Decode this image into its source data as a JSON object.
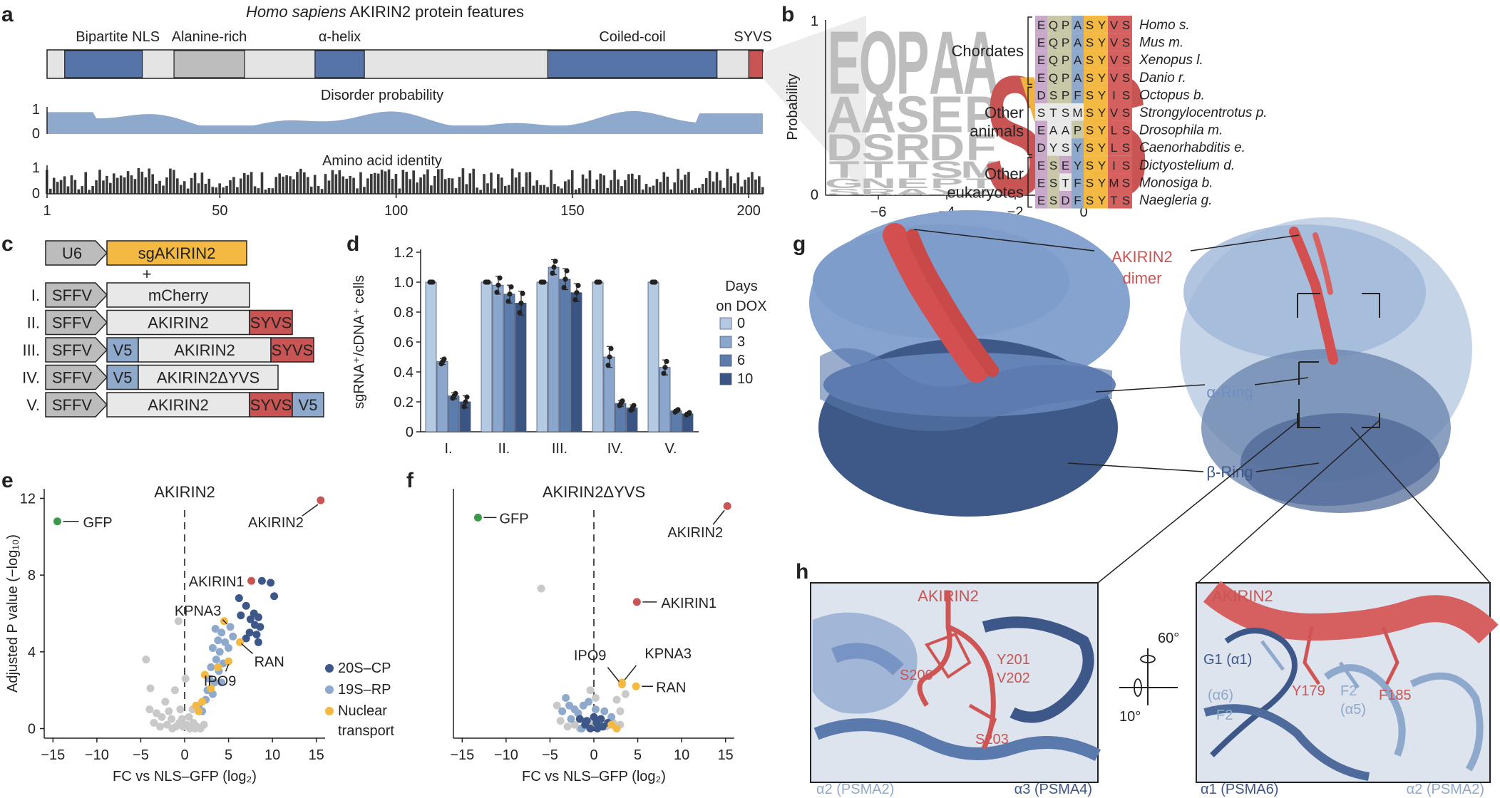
{
  "panel_letters": [
    "a",
    "b",
    "c",
    "d",
    "e",
    "f",
    "g",
    "h"
  ],
  "a": {
    "title_species": "Homo sapiens",
    "title_rest": "AKIRIN2 protein features",
    "domains": [
      {
        "label": "Bipartite NLS",
        "start": 6,
        "end": 28,
        "type": "blue"
      },
      {
        "label": "Alanine-rich",
        "start": 37,
        "end": 57,
        "type": "grey"
      },
      {
        "label": "α-helix",
        "start": 77,
        "end": 91,
        "type": "blue"
      },
      {
        "label": "Coiled-coil",
        "start": 143,
        "end": 191,
        "type": "blue"
      },
      {
        "label": "SYVS",
        "start": 200,
        "end": 204,
        "type": "red"
      }
    ],
    "length": 204,
    "disorder_label": "Disorder probability",
    "identity_label": "Amino acid identity",
    "y_ticks": [
      "1",
      "0"
    ],
    "x_ticks": [
      "1",
      "50",
      "100",
      "150",
      "200"
    ]
  },
  "b": {
    "ylabel": "Probability",
    "y_ticks": [
      "1",
      "0"
    ],
    "x_ticks": [
      "−6",
      "−4",
      "−2",
      "0"
    ],
    "logo_columns": [
      {
        "pos": -7,
        "letters": [
          "E",
          "A",
          "D",
          "T",
          "G",
          "S"
        ]
      },
      {
        "pos": -6,
        "letters": [
          "Q",
          "A",
          "S",
          "T",
          "N",
          "R"
        ]
      },
      {
        "pos": -5,
        "letters": [
          "P",
          "S",
          "R",
          "T",
          "E",
          "A"
        ]
      },
      {
        "pos": -4,
        "letters": [
          "A",
          "E",
          "D",
          "S",
          "P",
          "Y"
        ]
      },
      {
        "pos": -3,
        "letters": [
          "A",
          "P",
          "F",
          "M",
          "T",
          "Y"
        ]
      },
      {
        "pos": -2,
        "letters": [
          "S"
        ]
      },
      {
        "pos": -1,
        "letters": [
          "Y"
        ]
      },
      {
        "pos": 0,
        "letters": [
          "V",
          "L",
          "M"
        ]
      },
      {
        "pos": 1,
        "letters": [
          "S"
        ]
      }
    ],
    "groups": [
      {
        "label": [
          "Chordates"
        ],
        "rows": [
          {
            "seq": "EQPASYVS",
            "species": "Homo s."
          },
          {
            "seq": "EQPASYVS",
            "species": "Mus m."
          },
          {
            "seq": "EQPASYVS",
            "species": "Xenopus l."
          },
          {
            "seq": "EQPASYVS",
            "species": "Danio r."
          }
        ]
      },
      {
        "label": [
          "Other",
          "animals"
        ],
        "rows": [
          {
            "seq": "DSPFSYIS",
            "species": "Octopus b."
          },
          {
            "seq": "STSMSYVS",
            "species": "Strongylocentrotus p."
          },
          {
            "seq": "EAAPSYLS",
            "species": "Drosophila m."
          },
          {
            "seq": "DYSYSYLS",
            "species": "Caenorhabditis e."
          }
        ]
      },
      {
        "label": [
          "Other",
          "eukaryotes"
        ],
        "rows": [
          {
            "seq": "ESEYSYIS",
            "species": "Dictyostelium d."
          },
          {
            "seq": "ESTFSYMS",
            "species": "Monosiga b."
          },
          {
            "seq": "ESDFSYTS",
            "species": "Naegleria g."
          }
        ]
      }
    ]
  },
  "c": {
    "top": {
      "promoter": "U6",
      "insert": "sgAKIRIN2"
    },
    "plus": "+",
    "constructs": [
      {
        "id": "I.",
        "promoter": "SFFV",
        "parts": [
          {
            "label": "mCherry",
            "kind": "grey",
            "w": 200
          }
        ]
      },
      {
        "id": "II.",
        "promoter": "SFFV",
        "parts": [
          {
            "label": "AKIRIN2",
            "kind": "grey",
            "w": 200
          },
          {
            "label": "SYVS",
            "kind": "red",
            "w": 60
          }
        ]
      },
      {
        "id": "III.",
        "promoter": "SFFV",
        "parts": [
          {
            "label": "V5",
            "kind": "blue",
            "w": 44
          },
          {
            "label": "AKIRIN2",
            "kind": "grey",
            "w": 186
          },
          {
            "label": "SYVS",
            "kind": "red",
            "w": 60
          }
        ]
      },
      {
        "id": "IV.",
        "promoter": "SFFV",
        "parts": [
          {
            "label": "V5",
            "kind": "blue",
            "w": 44
          },
          {
            "label": "AKIRIN2ΔYVS",
            "kind": "grey",
            "w": 196
          }
        ]
      },
      {
        "id": "V.",
        "promoter": "SFFV",
        "parts": [
          {
            "label": "AKIRIN2",
            "kind": "grey",
            "w": 200
          },
          {
            "label": "SYVS",
            "kind": "red",
            "w": 60
          },
          {
            "label": "V5",
            "kind": "blue",
            "w": 44
          }
        ]
      }
    ]
  },
  "chart_data": [
    {
      "type": "bar",
      "panel": "d",
      "ylabel": "sgRNA⁺/cDNA⁺ cells",
      "categories": [
        "I.",
        "II.",
        "III.",
        "IV.",
        "V."
      ],
      "ylim": [
        0,
        1.2
      ],
      "y_ticks": [
        "0",
        "0.2",
        "0.4",
        "0.6",
        "0.8",
        "1.0",
        "1.2"
      ],
      "legend_title": [
        "Days",
        "on DOX"
      ],
      "series": [
        {
          "name": "0",
          "values": [
            1.0,
            1.0,
            1.0,
            1.0,
            1.0
          ],
          "errors": [
            0.0,
            0.0,
            0.0,
            0.0,
            0.0
          ],
          "color": "#b4c9e2"
        },
        {
          "name": "3",
          "values": [
            0.47,
            0.98,
            1.1,
            0.5,
            0.43
          ],
          "errors": [
            0.02,
            0.06,
            0.05,
            0.07,
            0.05
          ],
          "color": "#8aa6cc"
        },
        {
          "name": "6",
          "values": [
            0.24,
            0.92,
            1.02,
            0.19,
            0.14
          ],
          "errors": [
            0.02,
            0.06,
            0.07,
            0.02,
            0.01
          ],
          "color": "#5c7cab"
        },
        {
          "name": "10",
          "values": [
            0.2,
            0.86,
            0.93,
            0.16,
            0.12
          ],
          "errors": [
            0.04,
            0.08,
            0.06,
            0.02,
            0.01
          ],
          "color": "#3a5584"
        }
      ]
    },
    {
      "type": "scatter",
      "panel": "e",
      "title": "AKIRIN2",
      "xlabel": "FC vs NLS–GFP (log₂)",
      "ylabel": "Adjusted P value (−log₁₀)",
      "xlim": [
        -16,
        16
      ],
      "ylim": [
        -0.5,
        12.5
      ],
      "x_ticks": [
        "−15",
        "−10",
        "−5",
        "0",
        "5",
        "10",
        "15"
      ],
      "y_ticks": [
        "0",
        "4",
        "8",
        "12"
      ],
      "legend": [
        "20S–CP",
        "19S–RP",
        "Nuclear transport"
      ],
      "labeled": [
        {
          "name": "GFP",
          "x": -14.5,
          "y": 10.8,
          "group": "gfp"
        },
        {
          "name": "AKIRIN2",
          "x": 15.5,
          "y": 11.9,
          "group": "akirin"
        },
        {
          "name": "AKIRIN1",
          "x": 7.6,
          "y": 7.7,
          "group": "akirin"
        },
        {
          "name": "KPNA3",
          "x": 4.5,
          "y": 5.6,
          "group": "nuclear"
        },
        {
          "name": "RAN",
          "x": 6.3,
          "y": 4.5,
          "group": "nuclear"
        },
        {
          "name": "IPO9",
          "x": 5.0,
          "y": 3.5,
          "group": "nuclear"
        }
      ],
      "cp20": [
        [
          8.8,
          7.7
        ],
        [
          9.8,
          7.6
        ],
        [
          10.2,
          6.9
        ],
        [
          6.2,
          6.8
        ],
        [
          7.0,
          6.4
        ],
        [
          7.9,
          6.0
        ],
        [
          8.4,
          5.8
        ],
        [
          7.5,
          5.7
        ],
        [
          8.0,
          5.4
        ],
        [
          8.6,
          5.3
        ],
        [
          7.4,
          5.0
        ],
        [
          8.2,
          4.9
        ],
        [
          7.0,
          4.7
        ],
        [
          8.4,
          4.5
        ],
        [
          6.4,
          5.9
        ]
      ],
      "rp19": [
        [
          3.5,
          5.2
        ],
        [
          4.2,
          5.0
        ],
        [
          5.2,
          5.3
        ],
        [
          3.8,
          4.6
        ],
        [
          4.6,
          4.5
        ],
        [
          5.5,
          4.8
        ],
        [
          3.2,
          4.2
        ],
        [
          4.0,
          4.0
        ],
        [
          5.0,
          4.2
        ],
        [
          3.6,
          3.6
        ],
        [
          4.4,
          3.4
        ],
        [
          3.0,
          3.2
        ],
        [
          3.9,
          3.0
        ],
        [
          2.8,
          2.6
        ],
        [
          3.4,
          2.4
        ],
        [
          2.6,
          2.0
        ],
        [
          3.2,
          1.8
        ],
        [
          2.4,
          1.5
        ],
        [
          4.2,
          2.4
        ],
        [
          1.6,
          1.2
        ],
        [
          2.0,
          0.9
        ]
      ],
      "nuclear": [
        [
          1.3,
          1.2
        ],
        [
          2.0,
          1.4
        ],
        [
          1.6,
          0.9
        ],
        [
          3.0,
          2.1
        ],
        [
          2.3,
          2.8
        ],
        [
          3.8,
          3.2
        ]
      ],
      "grey": [
        [
          -4.4,
          3.6
        ],
        [
          -4.0,
          1.0
        ],
        [
          -3.2,
          0.8
        ],
        [
          -2.6,
          0.6
        ],
        [
          -3.5,
          0.3
        ],
        [
          -2.0,
          0.2
        ],
        [
          -1.5,
          0.5
        ],
        [
          -1.0,
          0.1
        ],
        [
          -0.6,
          0.3
        ],
        [
          -0.2,
          0.1
        ],
        [
          0.2,
          0.2
        ],
        [
          0.6,
          0.0
        ],
        [
          1.0,
          0.3
        ],
        [
          1.4,
          0.1
        ],
        [
          1.8,
          0.0
        ],
        [
          -1.4,
          0.0
        ],
        [
          -2.8,
          0.1
        ],
        [
          -0.5,
          1.0
        ],
        [
          0.5,
          0.6
        ],
        [
          -2.2,
          1.4
        ],
        [
          -3.9,
          2.1
        ],
        [
          -1.1,
          2.0
        ],
        [
          0.1,
          2.6
        ],
        [
          -0.7,
          5.6
        ],
        [
          1.2,
          0.0
        ],
        [
          2.2,
          0.2
        ],
        [
          -1.8,
          0.9
        ],
        [
          0.9,
          1.0
        ],
        [
          -0.3,
          0.5
        ]
      ]
    },
    {
      "type": "scatter",
      "panel": "f",
      "title": "AKIRIN2ΔYVS",
      "xlabel": "FC vs NLS–GFP (log₂)",
      "xlim": [
        -16,
        16
      ],
      "ylim": [
        -0.5,
        12.5
      ],
      "x_ticks": [
        "−15",
        "−10",
        "−5",
        "0",
        "5",
        "10",
        "15"
      ],
      "labeled": [
        {
          "name": "GFP",
          "x": -13.2,
          "y": 11.0,
          "group": "gfp"
        },
        {
          "name": "AKIRIN2",
          "x": 15.2,
          "y": 11.6,
          "group": "akirin"
        },
        {
          "name": "AKIRIN1",
          "x": 4.9,
          "y": 6.6,
          "group": "akirin"
        },
        {
          "name": "IPO9",
          "x": 3.2,
          "y": 2.3,
          "group": "nuclear"
        },
        {
          "name": "KPNA3",
          "x": 3.2,
          "y": 2.4,
          "group": "nuclear"
        },
        {
          "name": "RAN",
          "x": 4.8,
          "y": 2.2,
          "group": "nuclear"
        }
      ],
      "cp20": [
        [
          -1.0,
          0.2
        ],
        [
          -0.4,
          0.0
        ],
        [
          0.3,
          0.3
        ],
        [
          1.0,
          0.1
        ],
        [
          -1.6,
          0.5
        ],
        [
          0.0,
          0.6
        ],
        [
          0.8,
          0.5
        ],
        [
          -0.8,
          0.4
        ],
        [
          1.6,
          0.3
        ],
        [
          0.4,
          0.0
        ]
      ],
      "rp19": [
        [
          -3.2,
          1.6
        ],
        [
          -2.8,
          1.2
        ],
        [
          -2.2,
          1.0
        ],
        [
          -1.8,
          0.8
        ],
        [
          -2.6,
          0.5
        ],
        [
          -1.2,
          1.2
        ],
        [
          -0.6,
          1.4
        ],
        [
          0.2,
          1.0
        ],
        [
          -3.6,
          0.9
        ],
        [
          -1.4,
          0.0
        ],
        [
          1.2,
          0.9
        ],
        [
          2.0,
          0.6
        ]
      ],
      "nuclear": [
        [
          2.0,
          0.2
        ],
        [
          2.6,
          0.0
        ]
      ],
      "grey": [
        [
          -6.0,
          7.3
        ],
        [
          -4.2,
          1.2
        ],
        [
          -3.8,
          0.4
        ],
        [
          -3.0,
          0.1
        ],
        [
          -2.2,
          0.2
        ],
        [
          -1.6,
          0.0
        ],
        [
          -0.8,
          0.1
        ],
        [
          -0.2,
          0.3
        ],
        [
          0.6,
          0.2
        ],
        [
          1.4,
          0.1
        ],
        [
          2.2,
          0.3
        ],
        [
          3.0,
          0.2
        ],
        [
          2.6,
          1.5
        ],
        [
          3.6,
          1.8
        ],
        [
          3.0,
          0.9
        ],
        [
          -0.4,
          2.0
        ],
        [
          0.2,
          1.6
        ]
      ]
    }
  ],
  "g": {
    "labels": {
      "dimer": [
        "AKIRIN2",
        "dimer"
      ],
      "alpha": "α-Ring",
      "beta": "β-Ring"
    }
  },
  "h": {
    "left": {
      "title": "AKIRIN2",
      "residues": [
        "S200",
        "Y201",
        "V202",
        "S203"
      ],
      "bottom_left": "α2 (PSMA2)",
      "bottom_right": "α3 (PSMA4)"
    },
    "right": {
      "title": "AKIRIN2",
      "dark_residues": [
        "G1 (α1)"
      ],
      "light_residues": [
        "(α6)",
        "F2",
        "F2",
        "(α5)"
      ],
      "red_residues": [
        "Y179",
        "F185"
      ],
      "bottom_left": "α1 (PSMA6)",
      "bottom_right": "α2 (PSMA2)"
    },
    "rotation": [
      "60°",
      "10°"
    ]
  },
  "colors": {
    "blue_dark": "#3d5789",
    "blue_mid": "#5674a8",
    "blue_light": "#8fa9cc",
    "red": "#c85454",
    "grey": "#c8c8c8",
    "orange": "#f4b942",
    "green": "#3a9a4a"
  }
}
